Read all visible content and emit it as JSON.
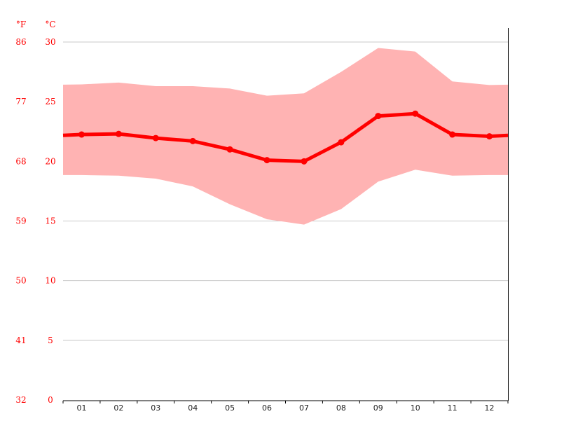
{
  "chart_data": {
    "type": "line",
    "units": {
      "left": "°F",
      "right": "°C"
    },
    "categories": [
      "01",
      "02",
      "03",
      "04",
      "05",
      "06",
      "07",
      "08",
      "09",
      "10",
      "11",
      "12"
    ],
    "y_ticks_c": [
      0,
      5,
      10,
      15,
      20,
      25,
      30
    ],
    "y_ticks_f": [
      32,
      41,
      50,
      59,
      68,
      77,
      86
    ],
    "ylim": [
      0,
      30
    ],
    "grid": true,
    "series": [
      {
        "role": "mean",
        "values": [
          22.25,
          22.3,
          21.95,
          21.7,
          21.0,
          20.1,
          20.0,
          21.6,
          23.8,
          24.0,
          22.25,
          22.1
        ]
      },
      {
        "role": "max",
        "values": [
          26.45,
          26.6,
          26.3,
          26.3,
          26.1,
          25.5,
          25.7,
          27.5,
          29.5,
          29.2,
          26.7,
          26.4
        ]
      },
      {
        "role": "min",
        "values": [
          18.85,
          18.8,
          18.55,
          17.9,
          16.4,
          15.15,
          14.7,
          16.0,
          18.3,
          19.3,
          18.8,
          18.85
        ]
      }
    ],
    "colors": {
      "line": "#ff0000",
      "band": "#ffb3b3",
      "grid": "#c8c8c8",
      "axis_label": "#ff0000"
    }
  }
}
